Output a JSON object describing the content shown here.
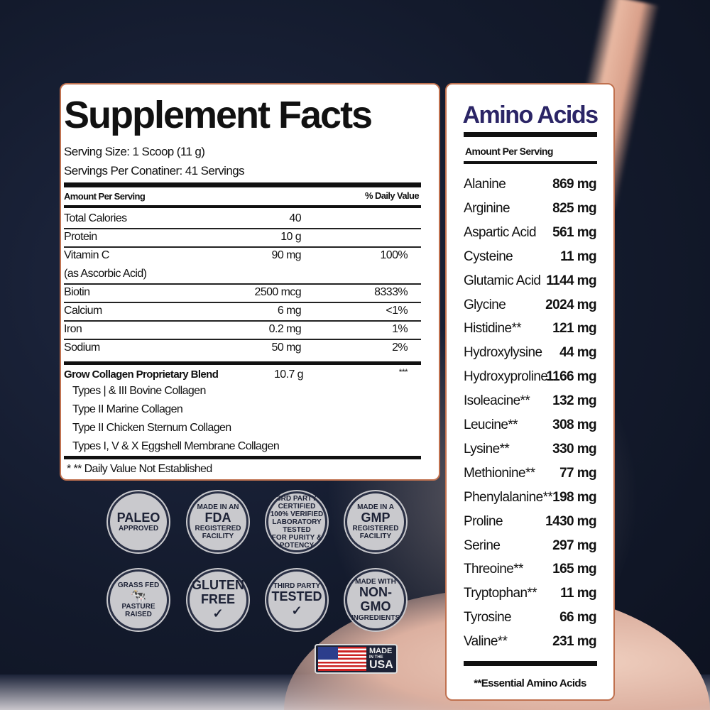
{
  "supplement_facts": {
    "title": "Supplement Facts",
    "serving_size": "Serving Size:  1 Scoop (11 g)",
    "servings_per_container": "Servings Per Conatiner: 41 Servings",
    "amount_header": "Amount Per Serving",
    "dv_header": "% Daily Value",
    "rows": [
      {
        "name": "Total Calories",
        "amount": "40",
        "dv": ""
      },
      {
        "name": "Protein",
        "amount": "10 g",
        "dv": ""
      },
      {
        "name": "Vitamin C",
        "amount": "90 mg",
        "dv": "100%",
        "sub": "(as Ascorbic Acid)"
      },
      {
        "name": "Biotin",
        "amount": "2500 mcg",
        "dv": "8333%"
      },
      {
        "name": "Calcium",
        "amount": "6 mg",
        "dv": "<1%"
      },
      {
        "name": "Iron",
        "amount": "0.2 mg",
        "dv": "1%"
      },
      {
        "name": "Sodium",
        "amount": "50 mg",
        "dv": "2%"
      }
    ],
    "blend": {
      "name": "Grow Collagen Proprietary Blend",
      "amount": "10.7 g",
      "dv": "***",
      "items": [
        "Types | & III Bovine Collagen",
        "Type II Marine Collagen",
        "Type II Chicken Sternum Collagen",
        "Types I, V & X Eggshell Membrane Collagen"
      ]
    },
    "footnote": "* ** Daily Value Not Established"
  },
  "amino_acids": {
    "title": "Amino Acids",
    "title_color": "#2b2566",
    "amount_header": "Amount Per Serving",
    "rows": [
      [
        "Alanine",
        "869 mg"
      ],
      [
        "Arginine",
        "825 mg"
      ],
      [
        "Aspartic Acid",
        "561 mg"
      ],
      [
        "Cysteine",
        "11 mg"
      ],
      [
        "Glutamic Acid",
        "1144 mg"
      ],
      [
        "Glycine",
        "2024 mg"
      ],
      [
        "Histidine**",
        "121 mg"
      ],
      [
        "Hydroxylysine",
        "44 mg"
      ],
      [
        "Hydroxyproline",
        "1166 mg"
      ],
      [
        "Isoleacine**",
        "132 mg"
      ],
      [
        "Leucine**",
        "308 mg"
      ],
      [
        "Lysine**",
        "330 mg"
      ],
      [
        "Methionine**",
        "77 mg"
      ],
      [
        "Phenylalanine**",
        "198 mg"
      ],
      [
        "Proline",
        "1430 mg"
      ],
      [
        "Serine",
        "297 mg"
      ],
      [
        "Threoine**",
        "165 mg"
      ],
      [
        "Tryptophan**",
        "11 mg"
      ],
      [
        "Tyrosine",
        "66 mg"
      ],
      [
        "Valine**",
        "231 mg"
      ]
    ],
    "footnote": "**Essential Amino Acids"
  },
  "badges": [
    {
      "icon": "paleo-approved-icon",
      "lines": [
        "PALEO",
        "APPROVED"
      ]
    },
    {
      "icon": "fda-registered-icon",
      "lines": [
        "MADE IN AN",
        "FDA",
        "REGISTERED FACILITY"
      ]
    },
    {
      "icon": "lab-tested-icon",
      "lines": [
        "3RD PARTY CERTIFIED",
        "100% VERIFIED",
        "LABORATORY TESTED",
        "FOR PURITY & POTENCY"
      ]
    },
    {
      "icon": "gmp-registered-icon",
      "lines": [
        "MADE IN A",
        "GMP",
        "REGISTERED FACILITY"
      ]
    },
    {
      "icon": "grass-fed-icon",
      "lines": [
        "GRASS FED",
        "🐄",
        "PASTURE RAISED"
      ]
    },
    {
      "icon": "gluten-free-icon",
      "lines": [
        "GLUTEN",
        "FREE",
        "✓"
      ]
    },
    {
      "icon": "third-party-tested-icon",
      "lines": [
        "THIRD PARTY",
        "TESTED",
        "✓"
      ]
    },
    {
      "icon": "non-gmo-icon",
      "lines": [
        "MADE WITH",
        "NON-GMO",
        "INGREDIENTS"
      ]
    }
  ],
  "made_in_usa": {
    "icon": "us-flag-icon",
    "lines": [
      "MADE",
      "IN THE",
      "USA"
    ]
  }
}
